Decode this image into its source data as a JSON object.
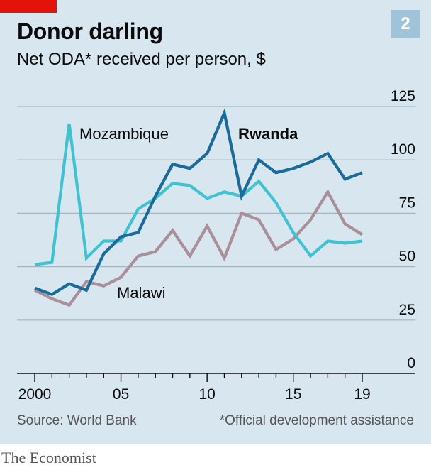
{
  "header": {
    "title": "Donor darling",
    "subtitle": "Net ODA* received per person, $",
    "chart_number": "2"
  },
  "footer": {
    "source": "Source: World Bank",
    "footnote": "*Official development assistance",
    "brand": "The Economist"
  },
  "colors": {
    "background": "#d8e7ef",
    "accent_tag": "#e3120b",
    "badge": "#9fc3d8",
    "rwanda": "#1a6a9b",
    "mozambique": "#3fc3d3",
    "malawi": "#aa8e99"
  },
  "chart_data": {
    "type": "line",
    "title": "Donor darling",
    "subtitle": "Net ODA* received per person, $",
    "x": [
      2000,
      2001,
      2002,
      2003,
      2004,
      2005,
      2006,
      2007,
      2008,
      2009,
      2010,
      2011,
      2012,
      2013,
      2014,
      2015,
      2016,
      2017,
      2018,
      2019
    ],
    "x_tick_values": [
      2000,
      2005,
      2010,
      2015,
      2019
    ],
    "x_tick_labels": [
      "2000",
      "05",
      "10",
      "15",
      "19"
    ],
    "y_ticks": [
      0,
      25,
      50,
      75,
      100,
      125
    ],
    "ylim": [
      0,
      125
    ],
    "grid": "horizontal",
    "legend": "direct labels",
    "series": [
      {
        "name": "Rwanda",
        "label_bold": true,
        "color": "#1a6a9b",
        "values": [
          40,
          37,
          42,
          39,
          56,
          64,
          66,
          83,
          98,
          96,
          103,
          122,
          83,
          100,
          94,
          96,
          99,
          103,
          91,
          94
        ]
      },
      {
        "name": "Mozambique",
        "label_bold": false,
        "color": "#3fc3d3",
        "values": [
          51,
          52,
          117,
          54,
          62,
          62,
          77,
          82,
          89,
          88,
          82,
          85,
          83,
          90,
          80,
          66,
          55,
          62,
          61,
          62
        ]
      },
      {
        "name": "Malawi",
        "label_bold": false,
        "color": "#aa8e99",
        "values": [
          39,
          35,
          32,
          43,
          41,
          45,
          55,
          57,
          67,
          55,
          69,
          54,
          75,
          72,
          58,
          63,
          72,
          85,
          70,
          65
        ]
      }
    ]
  }
}
